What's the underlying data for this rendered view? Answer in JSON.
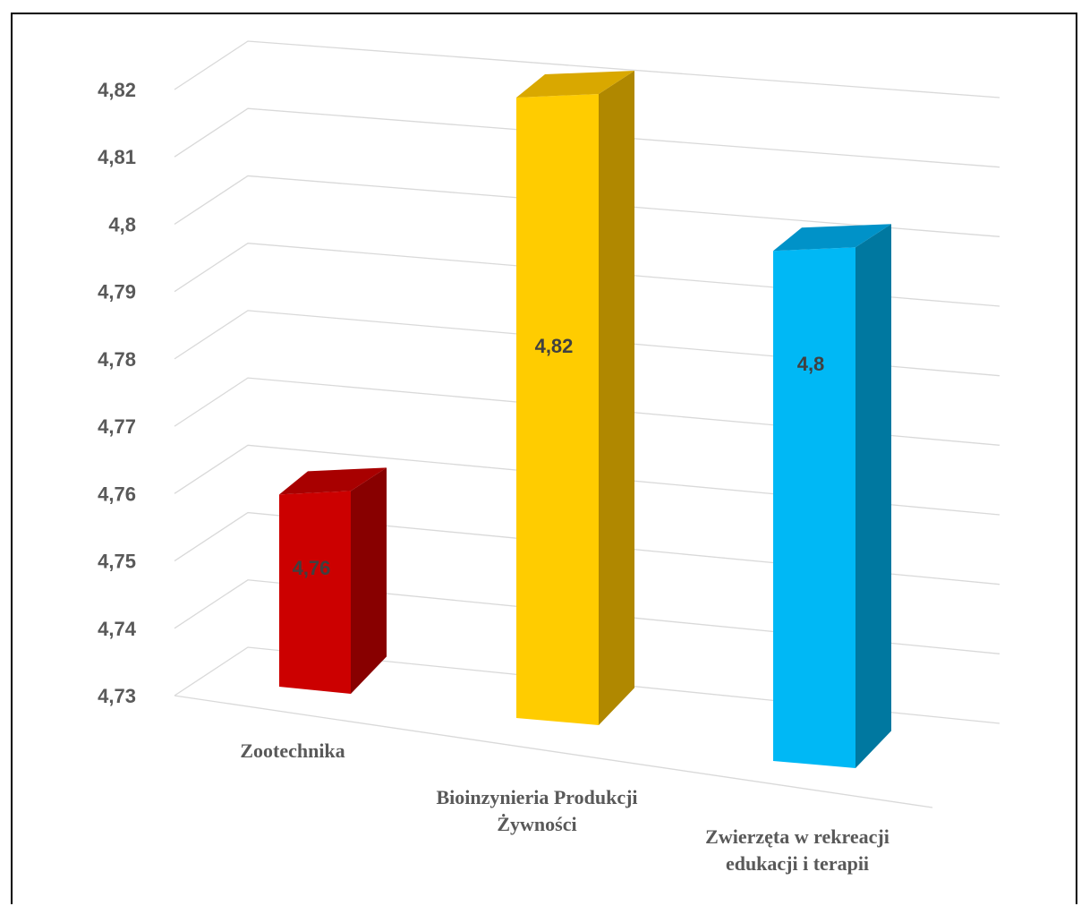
{
  "chart_data": {
    "type": "bar",
    "style": "3d-column",
    "categories": [
      [
        "Zootechnika"
      ],
      [
        "Bioinzynieria Produkcji",
        "Żywności"
      ],
      [
        "Zwierzęta w rekreacji",
        "edukacji i terapii"
      ]
    ],
    "values": [
      4.76,
      4.82,
      4.8
    ],
    "data_labels": [
      "4,76",
      "4,82",
      "4,8"
    ],
    "colors": [
      "#cc0000",
      "#ffcc00",
      "#00b8f5"
    ],
    "side_colors": [
      "#880000",
      "#b08800",
      "#0078a0"
    ],
    "top_colors": [
      "#a80000",
      "#d9a800",
      "#0092c8"
    ],
    "yticks": [
      "4,73",
      "4,74",
      "4,75",
      "4,76",
      "4,77",
      "4,78",
      "4,79",
      "4,8",
      "4,81",
      "4,82"
    ],
    "ylim": [
      4.73,
      4.82
    ],
    "grid": true,
    "legend": "none"
  }
}
